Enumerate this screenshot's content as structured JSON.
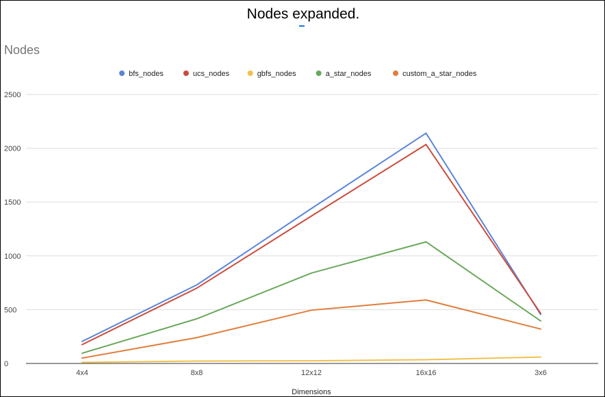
{
  "page": {
    "title": "Nodes expanded."
  },
  "chart_data": {
    "type": "line",
    "title": "Nodes",
    "xlabel": "Dimensions",
    "ylabel": "",
    "categories": [
      "4x4",
      "8x8",
      "12x12",
      "16x16",
      "3x6"
    ],
    "ylim": [
      0,
      2500
    ],
    "yticks": [
      0,
      500,
      1000,
      1500,
      2000,
      2500
    ],
    "grid": true,
    "legend_position": "top",
    "series": [
      {
        "name": "bfs_nodes",
        "color": "#5b84d9",
        "values": [
          205,
          730,
          1440,
          2140,
          455
        ]
      },
      {
        "name": "ucs_nodes",
        "color": "#cc4b3b",
        "values": [
          175,
          700,
          1370,
          2035,
          465
        ]
      },
      {
        "name": "gbfs_nodes",
        "color": "#f1c04c",
        "values": [
          10,
          22,
          25,
          35,
          60
        ]
      },
      {
        "name": "a_star_nodes",
        "color": "#6aa85a",
        "values": [
          95,
          415,
          840,
          1130,
          395
        ]
      },
      {
        "name": "custom_a_star_nodes",
        "color": "#e07d3c",
        "values": [
          50,
          240,
          495,
          590,
          320
        ]
      }
    ]
  }
}
